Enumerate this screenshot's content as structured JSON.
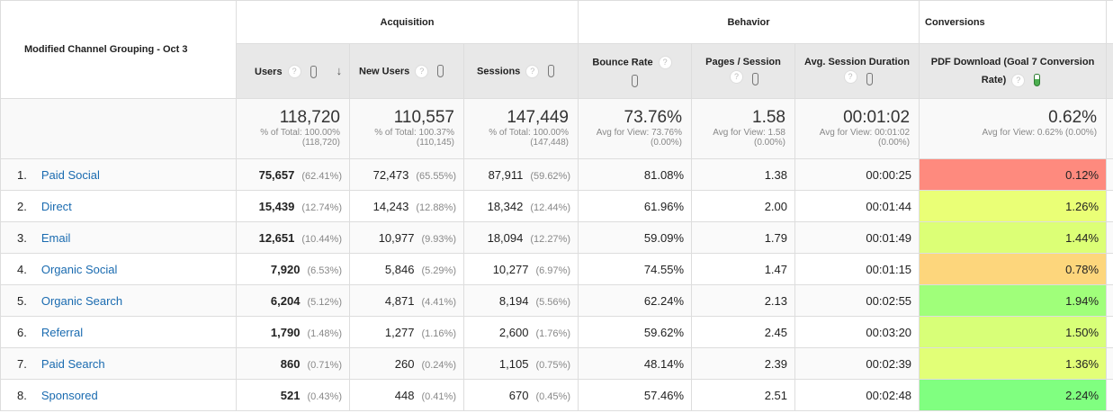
{
  "dimension_header": "Modified Channel Grouping - Oct 3",
  "groups": {
    "acquisition": "Acquisition",
    "behavior": "Behavior",
    "conversions": "Conversions"
  },
  "columns": {
    "users": "Users",
    "new_users": "New Users",
    "sessions": "Sessions",
    "bounce_rate": "Bounce Rate",
    "pages_session": "Pages / Session",
    "avg_duration": "Avg. Session Duration",
    "pdf_download": "PDF Download (Goal 7 Conversion Rate)"
  },
  "help_glyph": "?",
  "sort_glyph": "↓",
  "totals": {
    "users": {
      "value": "118,720",
      "sub1": "% of Total: 100.00%",
      "sub2": "(118,720)"
    },
    "new_users": {
      "value": "110,557",
      "sub1": "% of Total: 100.37%",
      "sub2": "(110,145)"
    },
    "sessions": {
      "value": "147,449",
      "sub1": "% of Total: 100.00%",
      "sub2": "(147,448)"
    },
    "bounce_rate": {
      "value": "73.76%",
      "sub1": "Avg for View: 73.76%",
      "sub2": "(0.00%)"
    },
    "pages_session": {
      "value": "1.58",
      "sub1": "Avg for View: 1.58",
      "sub2": "(0.00%)"
    },
    "avg_duration": {
      "value": "00:01:02",
      "sub1": "Avg for View: 00:01:02",
      "sub2": "(0.00%)"
    },
    "pdf_download": {
      "value": "0.62%",
      "sub1": "Avg for View: 0.62% (0.00%)"
    }
  },
  "rows": [
    {
      "n": "1.",
      "name": "Paid Social",
      "users": "75,657",
      "users_pct": "(62.41%)",
      "new_users": "72,473",
      "new_users_pct": "(65.55%)",
      "sessions": "87,911",
      "sessions_pct": "(59.62%)",
      "bounce": "81.08%",
      "pages": "1.38",
      "duration": "00:00:25",
      "conv": "0.12%",
      "conv_color": "#fe8a7e"
    },
    {
      "n": "2.",
      "name": "Direct",
      "users": "15,439",
      "users_pct": "(12.74%)",
      "new_users": "14,243",
      "new_users_pct": "(12.88%)",
      "sessions": "18,342",
      "sessions_pct": "(12.44%)",
      "bounce": "61.96%",
      "pages": "2.00",
      "duration": "00:01:44",
      "conv": "1.26%",
      "conv_color": "#eaff76"
    },
    {
      "n": "3.",
      "name": "Email",
      "users": "12,651",
      "users_pct": "(10.44%)",
      "new_users": "10,977",
      "new_users_pct": "(9.93%)",
      "sessions": "18,094",
      "sessions_pct": "(12.27%)",
      "bounce": "59.09%",
      "pages": "1.79",
      "duration": "00:01:49",
      "conv": "1.44%",
      "conv_color": "#dcff76"
    },
    {
      "n": "4.",
      "name": "Organic Social",
      "users": "7,920",
      "users_pct": "(6.53%)",
      "new_users": "5,846",
      "new_users_pct": "(5.29%)",
      "sessions": "10,277",
      "sessions_pct": "(6.97%)",
      "bounce": "74.55%",
      "pages": "1.47",
      "duration": "00:01:15",
      "conv": "0.78%",
      "conv_color": "#fdd67c"
    },
    {
      "n": "5.",
      "name": "Organic Search",
      "users": "6,204",
      "users_pct": "(5.12%)",
      "new_users": "4,871",
      "new_users_pct": "(4.41%)",
      "sessions": "8,194",
      "sessions_pct": "(5.56%)",
      "bounce": "62.24%",
      "pages": "2.13",
      "duration": "00:02:55",
      "conv": "1.94%",
      "conv_color": "#a0ff7a"
    },
    {
      "n": "6.",
      "name": "Referral",
      "users": "1,790",
      "users_pct": "(1.48%)",
      "new_users": "1,277",
      "new_users_pct": "(1.16%)",
      "sessions": "2,600",
      "sessions_pct": "(1.76%)",
      "bounce": "59.62%",
      "pages": "2.45",
      "duration": "00:03:20",
      "conv": "1.50%",
      "conv_color": "#d8ff78"
    },
    {
      "n": "7.",
      "name": "Paid Search",
      "users": "860",
      "users_pct": "(0.71%)",
      "new_users": "260",
      "new_users_pct": "(0.24%)",
      "sessions": "1,105",
      "sessions_pct": "(0.75%)",
      "bounce": "48.14%",
      "pages": "2.39",
      "duration": "00:02:39",
      "conv": "1.36%",
      "conv_color": "#e2ff77"
    },
    {
      "n": "8.",
      "name": "Sponsored",
      "users": "521",
      "users_pct": "(0.43%)",
      "new_users": "448",
      "new_users_pct": "(0.41%)",
      "sessions": "670",
      "sessions_pct": "(0.45%)",
      "bounce": "57.46%",
      "pages": "2.51",
      "duration": "00:02:48",
      "conv": "2.24%",
      "conv_color": "#80ff80"
    }
  ]
}
